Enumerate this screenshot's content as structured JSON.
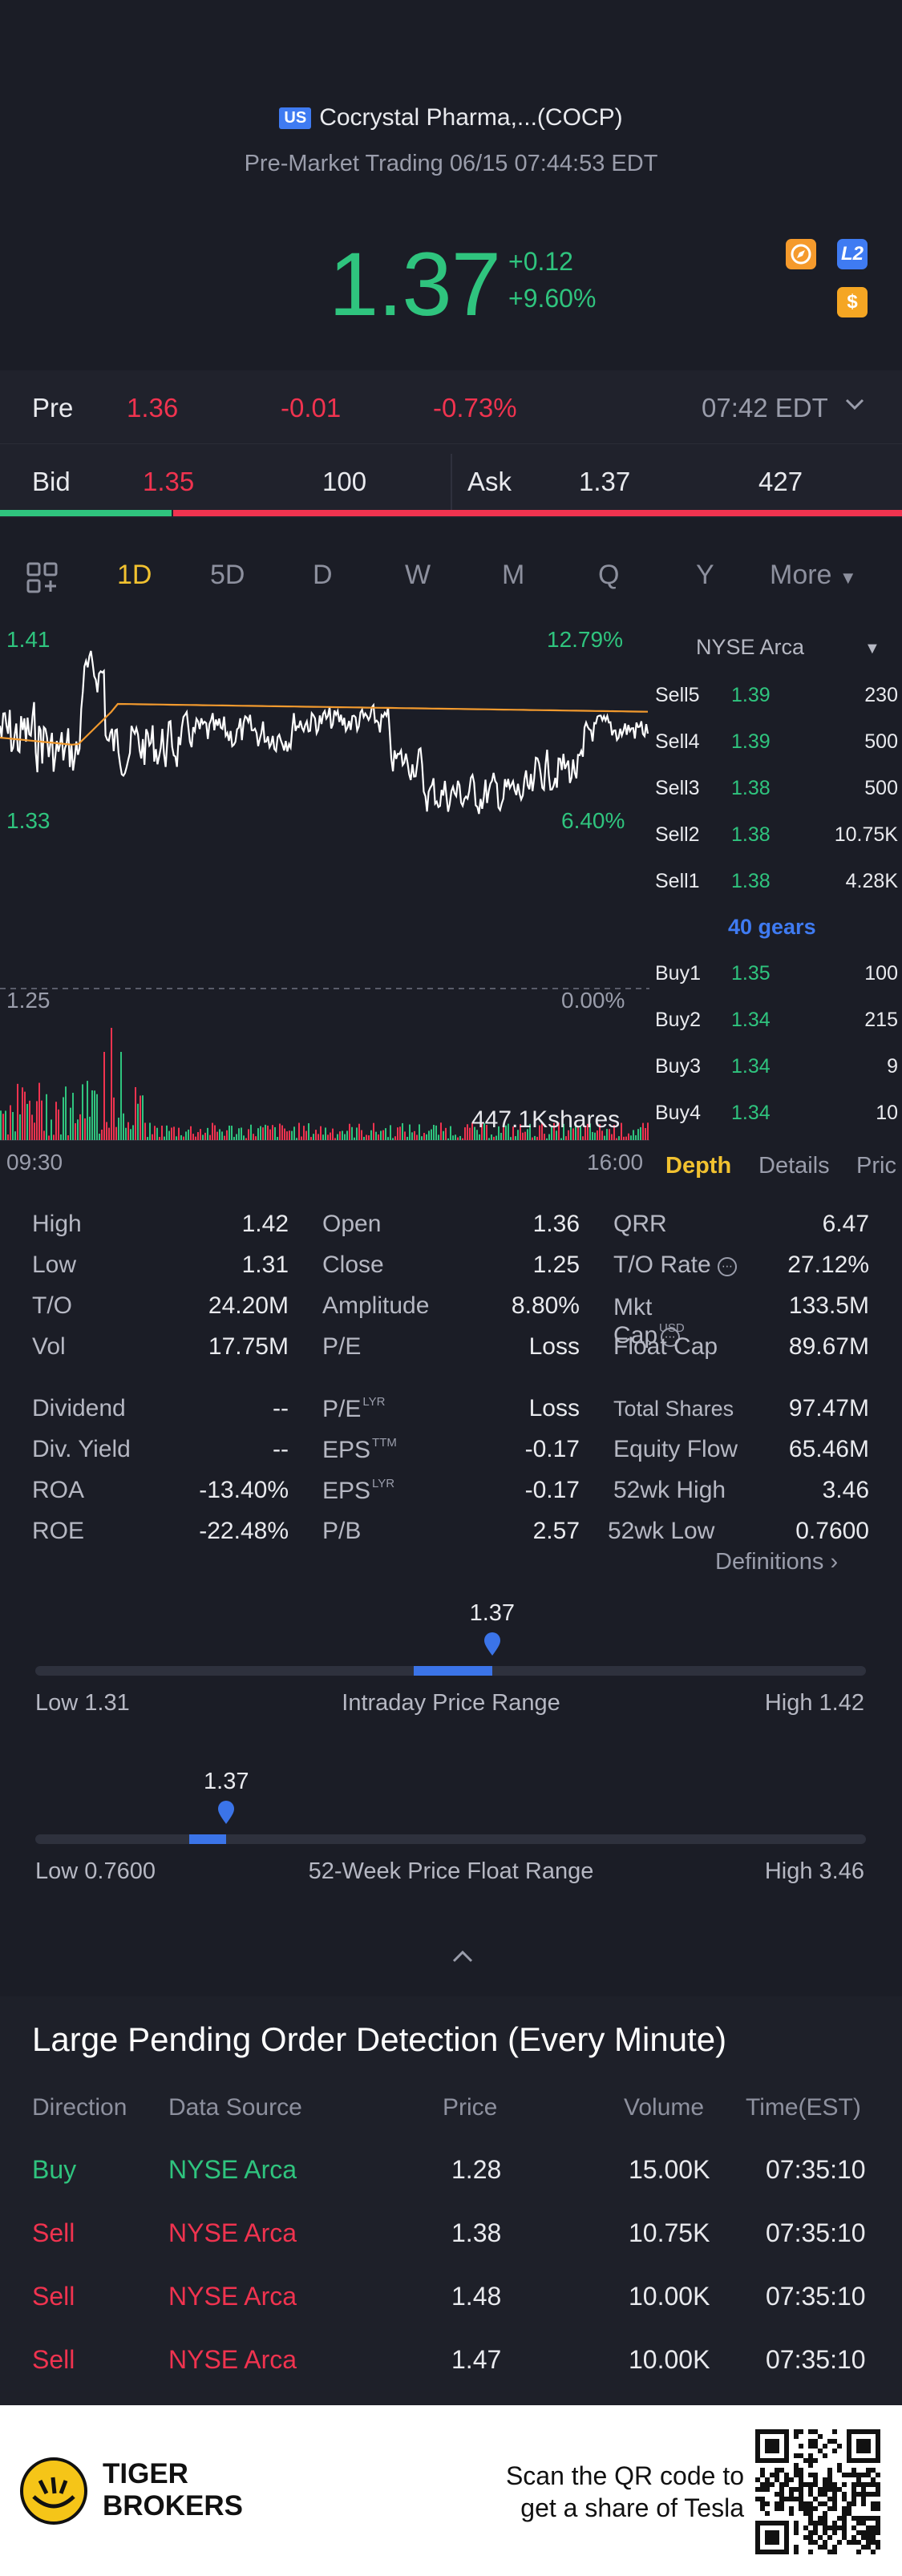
{
  "header": {
    "market_badge": "US",
    "stock_name": "Cocrystal Pharma,...(COCP)",
    "session_info": "Pre-Market Trading 06/15 07:44:53 EDT",
    "price": "1.37",
    "change": "+0.12",
    "change_pct": "+9.60%",
    "icons": [
      "compass-icon",
      "l2-icon",
      "dollar-icon"
    ],
    "icon_labels": {
      "l2": "L2",
      "dollar": "$"
    }
  },
  "pre_row": {
    "label": "Pre",
    "price": "1.36",
    "change": "-0.01",
    "change_pct": "-0.73%",
    "time": "07:42 EDT"
  },
  "bid_row": {
    "bid_label": "Bid",
    "bid_price": "1.35",
    "bid_size": "100",
    "ask_label": "Ask",
    "ask_price": "1.37",
    "ask_size": "427",
    "bid_ratio": 0.19
  },
  "tabs": {
    "items": [
      "1D",
      "5D",
      "D",
      "W",
      "M",
      "Q",
      "Y"
    ],
    "active": "1D",
    "more": "More"
  },
  "chart": {
    "y_high": "1.41",
    "y_high_pct": "12.79%",
    "y_mid": "1.33",
    "y_mid_pct": "6.40%",
    "y_low": "1.25",
    "y_low_pct": "0.00%",
    "volume_label": "447.1Kshares",
    "time_start": "09:30",
    "time_end": "16:00"
  },
  "orderbook": {
    "exchange": "NYSE Arca",
    "sells": [
      {
        "label": "Sell5",
        "price": "1.39",
        "vol": "230"
      },
      {
        "label": "Sell4",
        "price": "1.39",
        "vol": "500"
      },
      {
        "label": "Sell3",
        "price": "1.38",
        "vol": "500"
      },
      {
        "label": "Sell2",
        "price": "1.38",
        "vol": "10.75K"
      },
      {
        "label": "Sell1",
        "price": "1.38",
        "vol": "4.28K"
      }
    ],
    "gears": "40 gears",
    "buys": [
      {
        "label": "Buy1",
        "price": "1.35",
        "vol": "100"
      },
      {
        "label": "Buy2",
        "price": "1.34",
        "vol": "215"
      },
      {
        "label": "Buy3",
        "price": "1.34",
        "vol": "9"
      },
      {
        "label": "Buy4",
        "price": "1.34",
        "vol": "10"
      }
    ],
    "tabs": [
      "Depth",
      "Details",
      "Pric"
    ]
  },
  "stats": {
    "col1": [
      {
        "label": "High",
        "value": "1.42"
      },
      {
        "label": "Low",
        "value": "1.31"
      },
      {
        "label": "T/O",
        "value": "24.20M"
      },
      {
        "label": "Vol",
        "value": "17.75M"
      },
      {
        "label": "Dividend",
        "value": "--"
      },
      {
        "label": "Div. Yield",
        "value": "--"
      },
      {
        "label": "ROA",
        "value": "-13.40%"
      },
      {
        "label": "ROE",
        "value": "-22.48%"
      }
    ],
    "col2": [
      {
        "label": "Open",
        "value": "1.36",
        "sup": ""
      },
      {
        "label": "Close",
        "value": "1.25",
        "sup": ""
      },
      {
        "label": "Amplitude",
        "value": "8.80%",
        "sup": ""
      },
      {
        "label": "P/E",
        "value": "Loss",
        "sup": ""
      },
      {
        "label": "P/E",
        "value": "Loss",
        "sup": "LYR"
      },
      {
        "label": "EPS",
        "value": "-0.17",
        "sup": "TTM"
      },
      {
        "label": "EPS",
        "value": "-0.17",
        "sup": "LYR"
      },
      {
        "label": "P/B",
        "value": "2.57",
        "sup": ""
      }
    ],
    "col3": [
      {
        "label": "QRR",
        "value": "6.47",
        "sup": ""
      },
      {
        "label": "T/O Rate",
        "value": "27.12%",
        "sup": ""
      },
      {
        "label": "Mkt Cap",
        "value": "133.5M",
        "sup": "USD"
      },
      {
        "label": "Float Cap",
        "value": "89.67M",
        "sup": ""
      },
      {
        "label": "Total Shares",
        "value": "97.47M",
        "sup": ""
      },
      {
        "label": "Equity Flow",
        "value": "65.46M",
        "sup": ""
      },
      {
        "label": "52wk High",
        "value": "3.46",
        "sup": ""
      },
      {
        "label": "52wk Low",
        "value": "0.7600",
        "sup": ""
      }
    ],
    "definitions": "Definitions"
  },
  "intraday_range": {
    "current": "1.37",
    "low_label": "Low 1.31",
    "title": "Intraday Price Range",
    "high_label": "High 1.42",
    "marker_fraction": 0.55
  },
  "week52_range": {
    "current": "1.37",
    "low_label": "Low 0.7600",
    "title": "52-Week Price Float Range",
    "high_label": "High 3.46",
    "marker_fraction": 0.23
  },
  "pending": {
    "title": "Large Pending Order Detection (Every Minute)",
    "headers": [
      "Direction",
      "Data Source",
      "Price",
      "Volume",
      "Time(EST)"
    ],
    "rows": [
      {
        "direction": "Buy",
        "source": "NYSE Arca",
        "price": "1.28",
        "volume": "15.00K",
        "time": "07:35:10"
      },
      {
        "direction": "Sell",
        "source": "NYSE Arca",
        "price": "1.38",
        "volume": "10.75K",
        "time": "07:35:10"
      },
      {
        "direction": "Sell",
        "source": "NYSE Arca",
        "price": "1.48",
        "volume": "10.00K",
        "time": "07:35:10"
      },
      {
        "direction": "Sell",
        "source": "NYSE Arca",
        "price": "1.47",
        "volume": "10.00K",
        "time": "07:35:10"
      }
    ]
  },
  "footer": {
    "brand_line1": "TIGER",
    "brand_line2": "BROKERS",
    "cta_line1": "Scan the QR code to",
    "cta_line2": "get a share of Tesla"
  },
  "colors": {
    "up": "#2fc47e",
    "down": "#f0334f",
    "accent": "#3f7bf2",
    "active_tab": "#f2c230"
  }
}
